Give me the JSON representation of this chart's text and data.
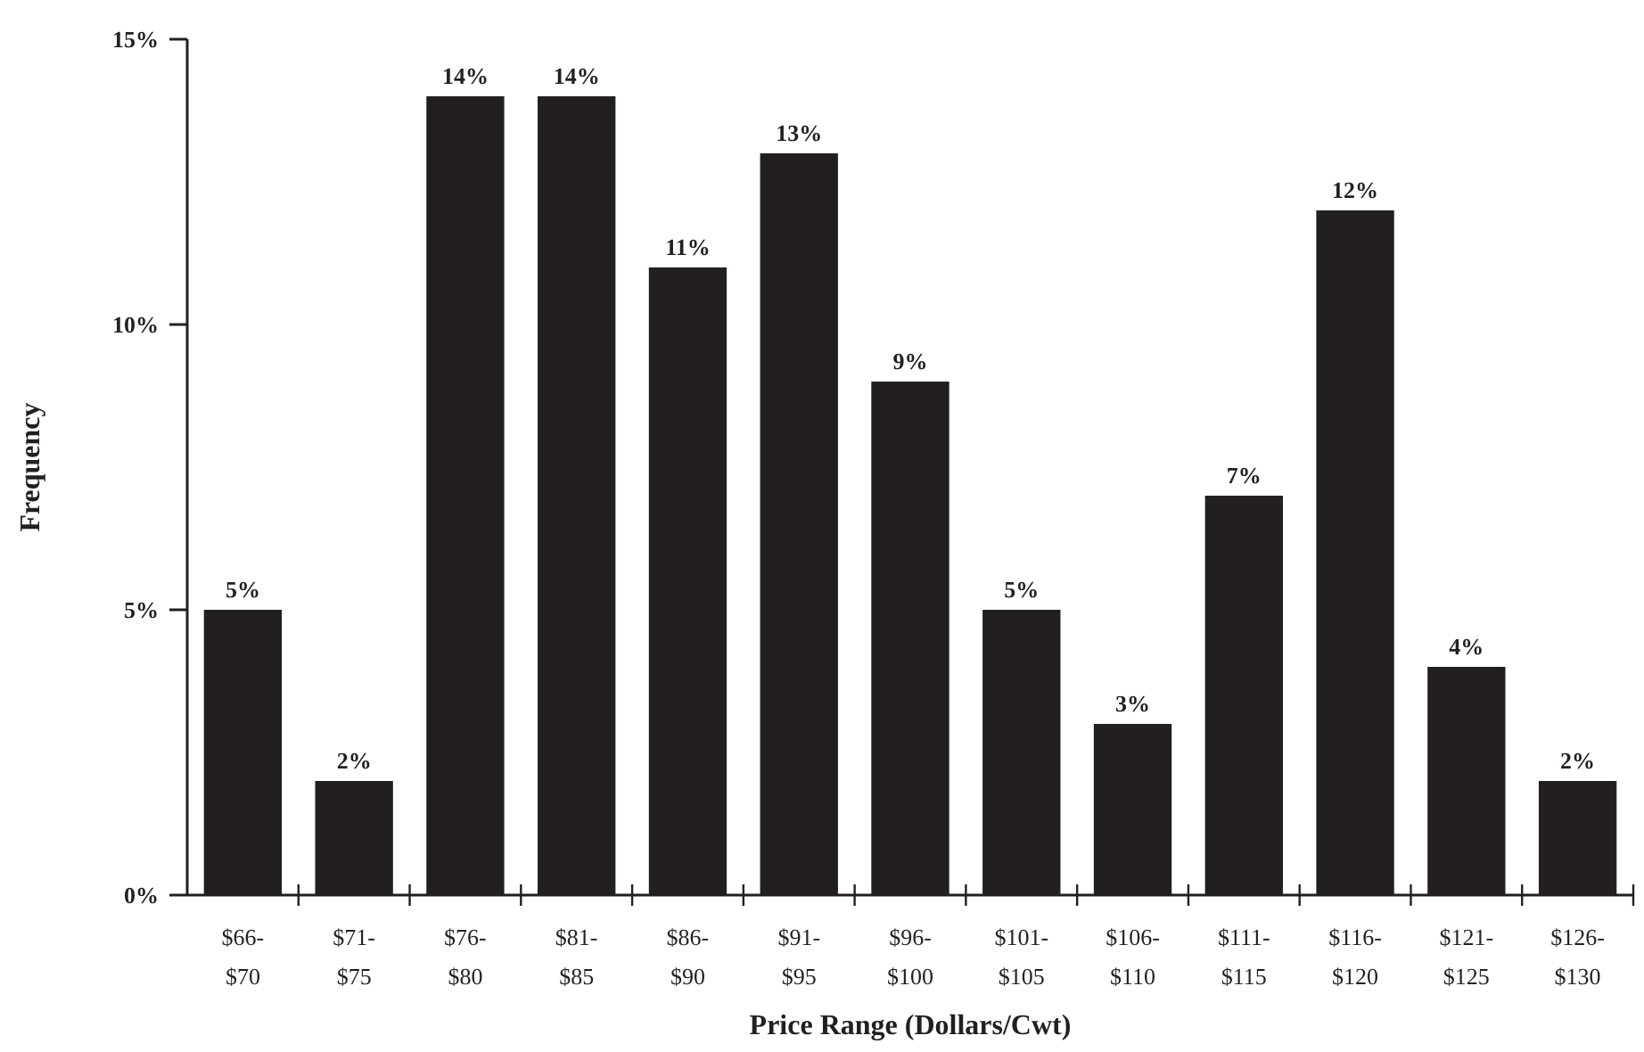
{
  "chart_data": {
    "type": "bar",
    "xlabel": "Price Range (Dollars/Cwt)",
    "ylabel": "Frequency",
    "categories": [
      "$66-$70",
      "$71-$75",
      "$76-$80",
      "$81-$85",
      "$86-$90",
      "$91-$95",
      "$96-$100",
      "$101-$105",
      "$106-$110",
      "$111-$115",
      "$116-$120",
      "$121-$125",
      "$126-$130"
    ],
    "values": [
      5,
      2,
      14,
      14,
      11,
      13,
      9,
      5,
      3,
      7,
      12,
      4,
      2
    ],
    "color": "#231f20",
    "ylim": [
      0,
      15
    ],
    "yticks": [
      {
        "value": 0,
        "label": "0%"
      },
      {
        "value": 5,
        "label": "5%"
      },
      {
        "value": 10,
        "label": "10%"
      },
      {
        "value": 15,
        "label": "15%"
      }
    ],
    "value_labels": [
      "5%",
      "2%",
      "14%",
      "14%",
      "11%",
      "13%",
      "9%",
      "5%",
      "3%",
      "7%",
      "12%",
      "4%",
      "2%"
    ]
  }
}
